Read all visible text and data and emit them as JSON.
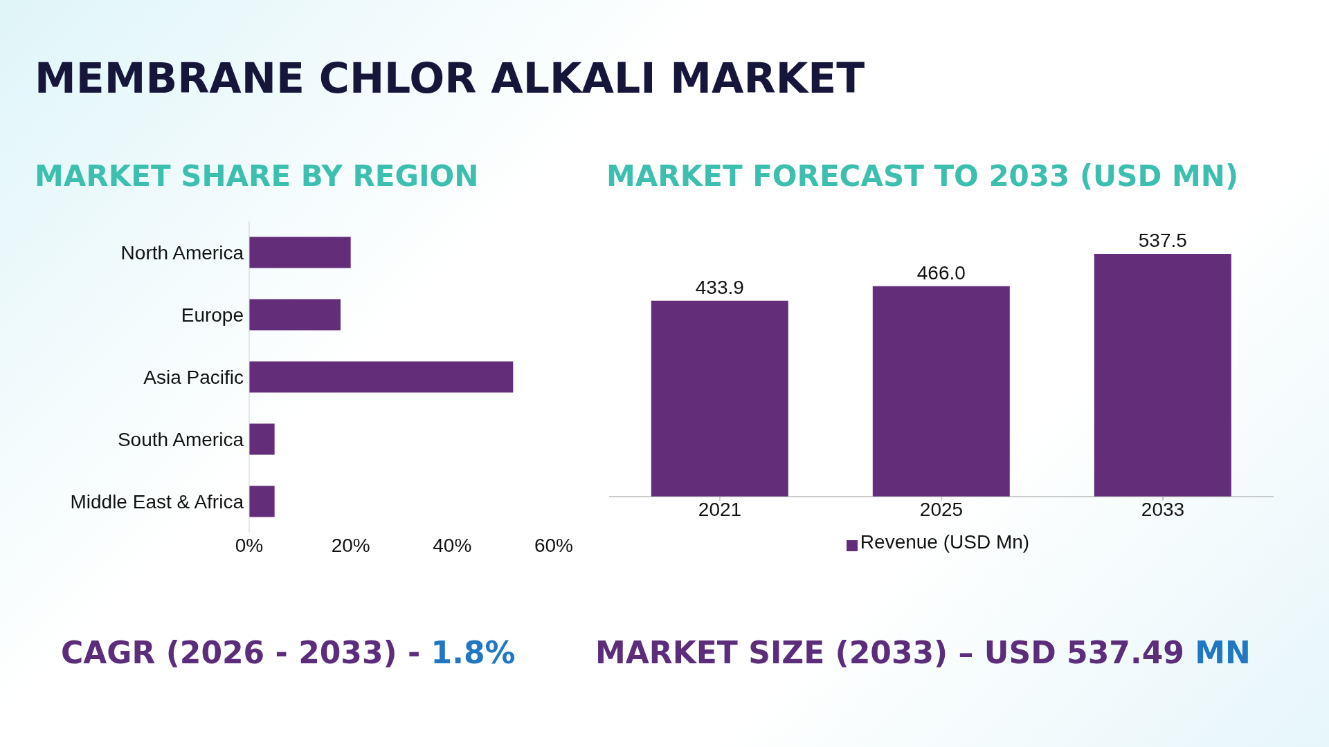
{
  "chart_data": [
    {
      "type": "bar",
      "orientation": "horizontal",
      "title": "MARKET SHARE BY REGION",
      "categories": [
        "North America",
        "Europe",
        "Asia Pacific",
        "South America",
        "Middle East & Africa"
      ],
      "values": [
        20,
        18,
        52,
        5,
        5
      ],
      "color": "#642d7a",
      "xlim": [
        0,
        60
      ],
      "xticks": [
        {
          "value": 0,
          "label": "0%"
        },
        {
          "value": 20,
          "label": "20%"
        },
        {
          "value": 40,
          "label": "40%"
        },
        {
          "value": 60,
          "label": "60%"
        }
      ],
      "annotations": [
        "MEMBRANE CHLOR ALKALI MARKET",
        "CAGR (2026 - 2033) - 1.8%"
      ]
    },
    {
      "type": "bar",
      "title": "MARKET FORECAST TO 2033 (USD MN)",
      "categories": [
        "2021",
        "2025",
        "2033"
      ],
      "series": [
        {
          "name": "Revenue (USD Mn)",
          "color": "#642d7a",
          "values": [
            433.9,
            466.0,
            537.5
          ],
          "value_labels": [
            "433.9",
            "466.0",
            "537.5"
          ]
        }
      ],
      "legend": "bottom",
      "annotations": [
        "MARKET SIZE (2033) – USD 537.49 MN"
      ]
    }
  ]
}
